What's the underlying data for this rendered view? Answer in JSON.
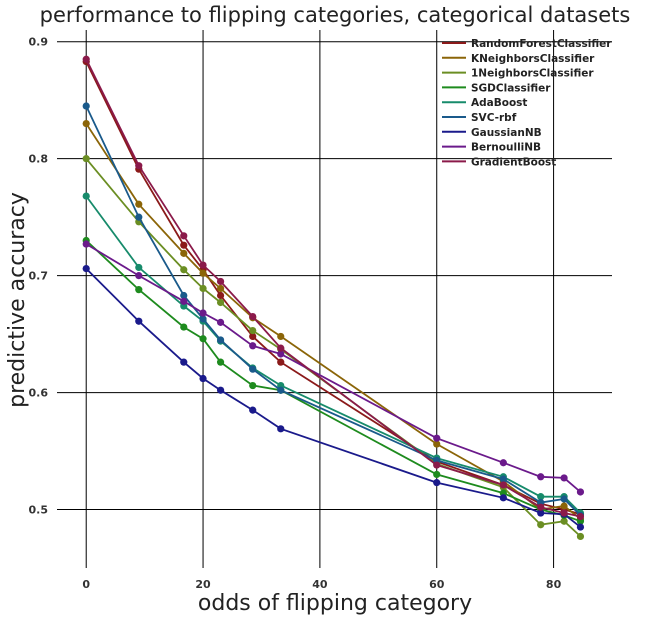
{
  "chart_data": {
    "type": "line",
    "title": "performance to flipping categories, categorical datasets",
    "xlabel": "odds of flipping category",
    "ylabel": "predictive accuracy",
    "xlim": [
      -5,
      90
    ],
    "ylim": [
      0.45,
      0.91
    ],
    "xticks": [
      0,
      20,
      40,
      60,
      80
    ],
    "yticks": [
      0.5,
      0.6,
      0.7,
      0.8,
      0.9
    ],
    "xtick_labels": [
      "0",
      "20",
      "40",
      "60",
      "80"
    ],
    "ytick_labels": [
      "0.5",
      "0.6",
      "0.7",
      "0.8",
      "0.9"
    ],
    "grid": true,
    "legend_position": "top-right",
    "series": [
      {
        "name": "RandomForestClassifier",
        "color": "#8b1a1a",
        "x": [
          0,
          9,
          16.7,
          20,
          23,
          28.5,
          33.3,
          60,
          71.4,
          77.8,
          81.8,
          84.6
        ],
        "values": [
          0.883,
          0.791,
          0.726,
          0.705,
          0.683,
          0.648,
          0.626,
          0.541,
          0.521,
          0.505,
          0.5,
          0.496
        ]
      },
      {
        "name": "KNeighborsClassifier",
        "color": "#8b6508",
        "x": [
          0,
          9,
          16.7,
          20,
          23,
          28.5,
          33.3,
          60,
          71.4,
          77.8,
          81.8,
          84.6
        ],
        "values": [
          0.83,
          0.761,
          0.719,
          0.702,
          0.689,
          0.664,
          0.648,
          0.556,
          0.524,
          0.5,
          0.503,
          0.492
        ]
      },
      {
        "name": "1NeighborsClassifier",
        "color": "#6b8e23",
        "x": [
          0,
          9,
          16.7,
          20,
          23,
          28.5,
          33.3,
          60,
          71.4,
          77.8,
          81.8,
          84.6
        ],
        "values": [
          0.8,
          0.746,
          0.705,
          0.689,
          0.677,
          0.653,
          0.637,
          0.539,
          0.519,
          0.487,
          0.49,
          0.477
        ]
      },
      {
        "name": "SGDClassifier",
        "color": "#1e8b1e",
        "x": [
          0,
          9,
          16.7,
          20,
          23,
          28.5,
          33.3,
          60,
          71.4,
          77.8,
          81.8,
          84.6
        ],
        "values": [
          0.73,
          0.688,
          0.656,
          0.646,
          0.626,
          0.606,
          0.602,
          0.53,
          0.514,
          0.5,
          0.495,
          0.49
        ]
      },
      {
        "name": "AdaBoost",
        "color": "#178b6b",
        "x": [
          0,
          9,
          16.7,
          20,
          23,
          28.5,
          33.3,
          60,
          71.4,
          77.8,
          81.8,
          84.6
        ],
        "values": [
          0.768,
          0.707,
          0.674,
          0.661,
          0.644,
          0.621,
          0.606,
          0.544,
          0.528,
          0.511,
          0.511,
          0.497
        ]
      },
      {
        "name": "SVC-rbf",
        "color": "#1a5a8b",
        "x": [
          0,
          9,
          16.7,
          20,
          23,
          28.5,
          33.3,
          60,
          71.4,
          77.8,
          81.8,
          84.6
        ],
        "values": [
          0.845,
          0.75,
          0.683,
          0.663,
          0.645,
          0.62,
          0.602,
          0.542,
          0.526,
          0.506,
          0.509,
          0.495
        ]
      },
      {
        "name": "GaussianNB",
        "color": "#1a1a8b",
        "x": [
          0,
          9,
          16.7,
          20,
          23,
          28.5,
          33.3,
          60,
          71.4,
          77.8,
          81.8,
          84.6
        ],
        "values": [
          0.706,
          0.661,
          0.626,
          0.612,
          0.602,
          0.585,
          0.569,
          0.523,
          0.51,
          0.497,
          0.496,
          0.485
        ]
      },
      {
        "name": "BernoulliNB",
        "color": "#6b1a8b",
        "x": [
          0,
          9,
          16.7,
          20,
          23,
          28.5,
          33.3,
          60,
          71.4,
          77.8,
          81.8,
          84.6
        ],
        "values": [
          0.727,
          0.7,
          0.678,
          0.668,
          0.66,
          0.64,
          0.633,
          0.561,
          0.54,
          0.528,
          0.527,
          0.515
        ]
      },
      {
        "name": "GradientBoost",
        "color": "#8b1a4a",
        "x": [
          0,
          9,
          16.7,
          20,
          23,
          28.5,
          33.3,
          60,
          71.4,
          77.8,
          81.8,
          84.6
        ],
        "values": [
          0.885,
          0.794,
          0.734,
          0.709,
          0.695,
          0.665,
          0.638,
          0.538,
          0.521,
          0.502,
          0.497,
          0.494
        ]
      }
    ]
  }
}
